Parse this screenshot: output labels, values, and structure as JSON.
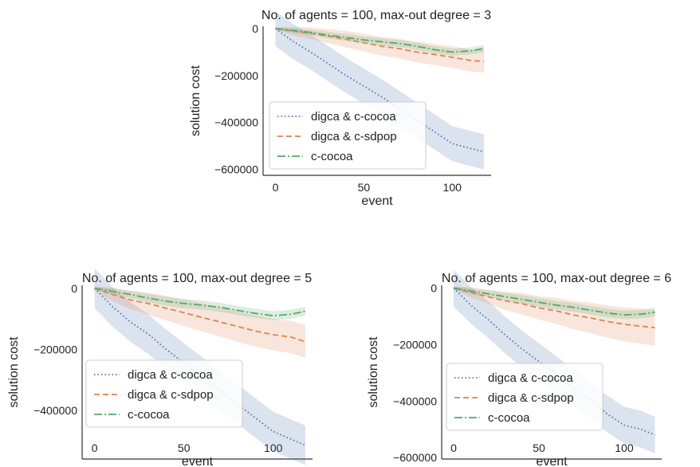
{
  "chart_data": [
    {
      "type": "line",
      "title": "No. of agents = 100, max-out degree = 3",
      "xlabel": "event",
      "ylabel": "solution cost",
      "xlim": [
        -7,
        122
      ],
      "ylim": [
        -625000,
        10000
      ],
      "xticks": [
        0,
        50,
        100
      ],
      "yticks": [
        0,
        -200000,
        -400000,
        -600000
      ],
      "ytick_labels": [
        "0",
        "−200000",
        "−400000",
        "−600000"
      ],
      "legend_position": "lower-left",
      "x": [
        0,
        10,
        20,
        30,
        40,
        50,
        60,
        70,
        80,
        90,
        100,
        110,
        118
      ],
      "series": [
        {
          "name": "digca & c-cocoa",
          "color": "#4c72b0",
          "dash": "dotted",
          "values": [
            0,
            -55000,
            -100000,
            -150000,
            -200000,
            -245000,
            -290000,
            -340000,
            -390000,
            -440000,
            -490000,
            -510000,
            -525000
          ],
          "band": [
            75000,
            75000,
            75000,
            75000,
            75000,
            75000,
            75000,
            75000,
            75000,
            75000,
            75000,
            75000,
            75000
          ]
        },
        {
          "name": "digca & c-sdpop",
          "color": "#dd8452",
          "dash": "dashed",
          "values": [
            0,
            -10000,
            -20000,
            -32000,
            -45000,
            -60000,
            -75000,
            -85000,
            -100000,
            -110000,
            -122000,
            -135000,
            -140000
          ],
          "band": [
            6000,
            18000,
            25000,
            30000,
            35000,
            38000,
            40000,
            42000,
            44000,
            45000,
            46000,
            47000,
            48000
          ]
        },
        {
          "name": "c-cocoa",
          "color": "#55a868",
          "dash": "dashdot",
          "values": [
            0,
            -8000,
            -16000,
            -28000,
            -38000,
            -48000,
            -56000,
            -63000,
            -75000,
            -90000,
            -100000,
            -95000,
            -85000
          ],
          "band": [
            5000,
            10000,
            12000,
            14000,
            15000,
            15000,
            15000,
            15000,
            15000,
            15000,
            15000,
            15000,
            15000
          ]
        }
      ]
    },
    {
      "type": "line",
      "title": "No. of agents = 100, max-out degree = 5",
      "xlabel": "event",
      "ylabel": "solution cost",
      "xlim": [
        -7,
        122
      ],
      "ylim": [
        -560000,
        10000
      ],
      "xticks": [
        0,
        50,
        100
      ],
      "yticks": [
        0,
        -200000,
        -400000
      ],
      "ytick_labels": [
        "0",
        "−200000",
        "−400000"
      ],
      "legend_position": "lower-left",
      "x": [
        0,
        10,
        20,
        30,
        40,
        50,
        60,
        70,
        80,
        90,
        100,
        110,
        118
      ],
      "series": [
        {
          "name": "digca & c-cocoa",
          "color": "#4c72b0",
          "dash": "dotted",
          "values": [
            0,
            -60000,
            -110000,
            -150000,
            -200000,
            -245000,
            -290000,
            -335000,
            -380000,
            -425000,
            -470000,
            -495000,
            -515000
          ],
          "band": [
            65000,
            65000,
            65000,
            65000,
            65000,
            65000,
            65000,
            65000,
            65000,
            65000,
            65000,
            65000,
            65000
          ]
        },
        {
          "name": "digca & c-sdpop",
          "color": "#dd8452",
          "dash": "dashed",
          "values": [
            0,
            -20000,
            -38000,
            -50000,
            -65000,
            -80000,
            -95000,
            -110000,
            -125000,
            -140000,
            -152000,
            -160000,
            -175000
          ],
          "band": [
            8000,
            22000,
            30000,
            36000,
            40000,
            44000,
            46000,
            48000,
            50000,
            51000,
            52000,
            53000,
            54000
          ]
        },
        {
          "name": "c-cocoa",
          "color": "#55a868",
          "dash": "dashdot",
          "values": [
            0,
            -10000,
            -20000,
            -32000,
            -42000,
            -50000,
            -55000,
            -62000,
            -72000,
            -82000,
            -90000,
            -85000,
            -75000
          ],
          "band": [
            5000,
            10000,
            12000,
            14000,
            15000,
            15000,
            15000,
            15000,
            15000,
            15000,
            15000,
            15000,
            15000
          ]
        }
      ]
    },
    {
      "type": "line",
      "title": "No. of agents = 100, max-out degree = 6",
      "xlabel": "event",
      "ylabel": "solution cost",
      "xlim": [
        -7,
        122
      ],
      "ylim": [
        -605000,
        10000
      ],
      "xticks": [
        0,
        50,
        100
      ],
      "yticks": [
        0,
        -200000,
        -400000,
        -600000
      ],
      "ytick_labels": [
        "0",
        "−200000",
        "−400000",
        "−600000"
      ],
      "legend_position": "lower-left",
      "x": [
        0,
        10,
        20,
        30,
        40,
        50,
        60,
        70,
        80,
        90,
        100,
        110,
        118
      ],
      "series": [
        {
          "name": "digca & c-cocoa",
          "color": "#4c72b0",
          "dash": "dotted",
          "values": [
            0,
            -60000,
            -110000,
            -165000,
            -215000,
            -260000,
            -305000,
            -350000,
            -395000,
            -445000,
            -485000,
            -500000,
            -520000
          ],
          "band": [
            65000,
            65000,
            65000,
            65000,
            65000,
            65000,
            65000,
            65000,
            65000,
            65000,
            65000,
            65000,
            65000
          ]
        },
        {
          "name": "digca & c-sdpop",
          "color": "#dd8452",
          "dash": "dashed",
          "values": [
            0,
            -15000,
            -30000,
            -45000,
            -55000,
            -70000,
            -80000,
            -95000,
            -105000,
            -118000,
            -128000,
            -135000,
            -140000
          ],
          "band": [
            6000,
            18000,
            25000,
            32000,
            38000,
            42000,
            46000,
            50000,
            54000,
            57000,
            60000,
            62000,
            64000
          ]
        },
        {
          "name": "c-cocoa",
          "color": "#55a868",
          "dash": "dashdot",
          "values": [
            0,
            -10000,
            -20000,
            -30000,
            -40000,
            -50000,
            -60000,
            -68000,
            -78000,
            -88000,
            -95000,
            -92000,
            -85000
          ],
          "band": [
            5000,
            10000,
            12000,
            14000,
            15000,
            15000,
            15000,
            15000,
            15000,
            15000,
            15000,
            15000,
            15000
          ]
        }
      ]
    }
  ]
}
